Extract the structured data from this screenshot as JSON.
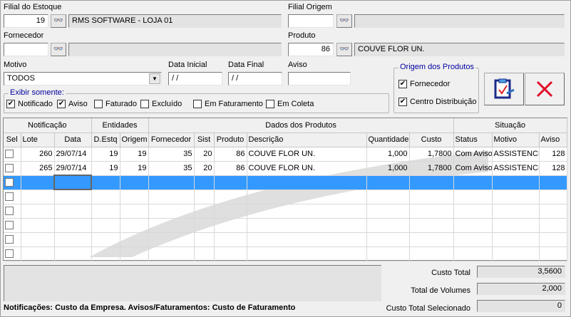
{
  "filters": {
    "filial_estoque": {
      "label": "Filial do Estoque",
      "code": "19",
      "name": "RMS SOFTWARE - LOJA 01"
    },
    "filial_origem": {
      "label": "Filial Origem",
      "code": "",
      "name": ""
    },
    "fornecedor": {
      "label": "Fornecedor",
      "code": "",
      "name": ""
    },
    "produto": {
      "label": "Produto",
      "code": "86",
      "name": "COUVE FLOR UN."
    },
    "motivo": {
      "label": "Motivo",
      "value": "TODOS"
    },
    "data_inicial": {
      "label": "Data Inicial",
      "value": " / /"
    },
    "data_final": {
      "label": "Data Final",
      "value": " / /"
    },
    "aviso": {
      "label": "Aviso",
      "value": ""
    }
  },
  "exibir": {
    "caption": "Exibir somente:",
    "items": [
      {
        "label": "Notificado",
        "checked": true
      },
      {
        "label": "Aviso",
        "checked": true
      },
      {
        "label": "Faturado",
        "checked": false
      },
      {
        "label": "Excluído",
        "checked": false
      },
      {
        "label": "Em Faturamento",
        "checked": false
      },
      {
        "label": "Em Coleta",
        "checked": false
      }
    ]
  },
  "origem": {
    "caption": "Origem dos  Produtos",
    "items": [
      {
        "label": "Fornecedor",
        "checked": true
      },
      {
        "label": "Centro Distribuição",
        "checked": true
      }
    ]
  },
  "buttons": {
    "confirm_icon": "clipboard-check-icon",
    "cancel_icon": "red-x-icon",
    "search_icon": "binoculars-icon"
  },
  "grid": {
    "groups": [
      "Notificação",
      "Entidades",
      "Dados dos Produtos",
      "Situação"
    ],
    "columns": [
      "Sel",
      "Lote",
      "Data",
      "D.Estq",
      "Origem",
      "Fornecedor",
      "Sist",
      "Produto",
      "Descrição",
      "Quantidade",
      "Custo",
      "Status",
      "Motivo",
      "Aviso"
    ],
    "rows": [
      [
        "",
        "260",
        "29/07/14",
        "19",
        "19",
        "35",
        "20",
        "86",
        "COUVE FLOR UN.",
        "1,000",
        "1,7800",
        "Com Aviso",
        "ASSISTENCIA",
        "128"
      ],
      [
        "",
        "265",
        "29/07/14",
        "19",
        "19",
        "35",
        "20",
        "86",
        "COUVE FLOR UN.",
        "1,000",
        "1,7800",
        "Com Aviso",
        "ASSISTENCIA",
        "128"
      ]
    ],
    "selection_color": "#3399ff"
  },
  "totals": {
    "custo_total": {
      "label": "Custo Total",
      "value": "3,5600"
    },
    "total_volumes": {
      "label": "Total de Volumes",
      "value": "2,000"
    },
    "custo_selecionado": {
      "label": "Custo Total Selecionado",
      "value": "0"
    }
  },
  "footer_note": "Notificações: Custo da Empresa. Avisos/Faturamentos: Custo de Faturamento"
}
